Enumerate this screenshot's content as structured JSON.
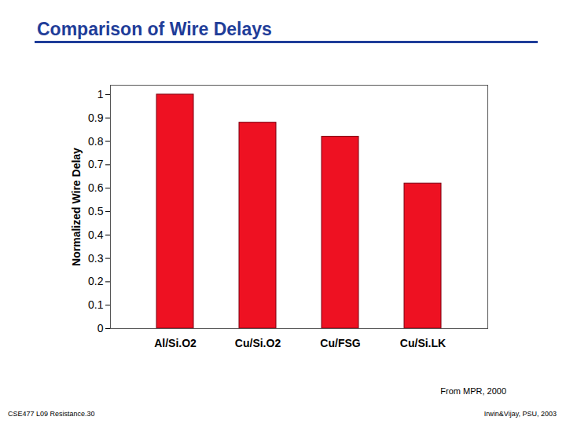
{
  "chart_data": {
    "type": "bar",
    "title": "Comparison of Wire Delays",
    "y_label": "Normalized Wire Delay",
    "categories": [
      "Al/Si.O2",
      "Cu/Si.O2",
      "Cu/FSG",
      "Cu/Si.LK"
    ],
    "values": [
      1.0,
      0.88,
      0.82,
      0.62
    ],
    "color": "#ee1122",
    "ylim": [
      0,
      1.04
    ],
    "yticks": [
      0,
      0.1,
      0.2,
      0.3,
      0.4,
      0.5,
      0.6,
      0.7,
      0.8,
      0.9,
      1
    ],
    "grid": false,
    "annotations": [
      "From MPR, 2000"
    ],
    "footer": [
      "CSE477 L09 Resistance.30",
      "Irwin&Vijay, PSU, 2003"
    ]
  }
}
